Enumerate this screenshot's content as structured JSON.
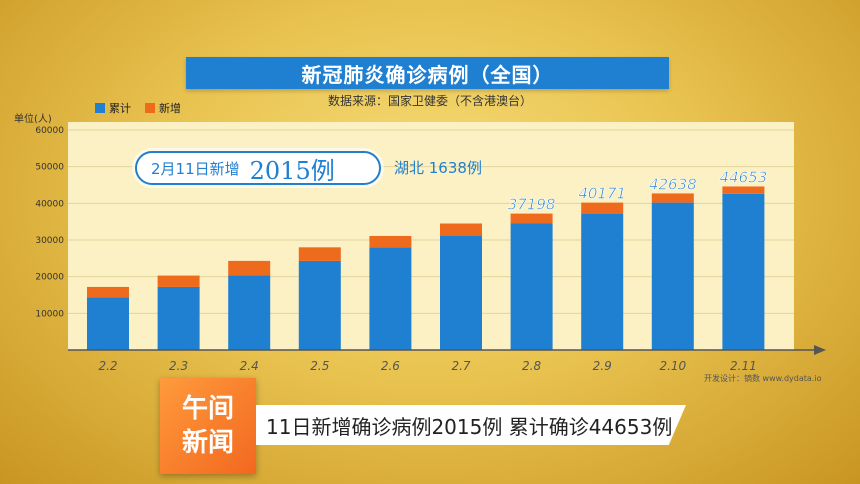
{
  "title": "新冠肺炎确诊病例（全国）",
  "subtitle": "数据来源：国家卫健委（不含港澳台）",
  "unit": "单位(人)",
  "callout": {
    "prefix": "2月11日新增",
    "value": "2015例"
  },
  "hubei": "湖北 1638例",
  "credit": "开发设计：镝数 www.dydata.io",
  "logo": {
    "line1": "午间",
    "line2": "新闻"
  },
  "ticker": "11日新增确诊病例2015例 累计确诊44653例",
  "colors": {
    "cumulative": "#1f7fd1",
    "new": "#ee6a1d"
  },
  "chart_data": {
    "type": "bar",
    "stacked": true,
    "categories": [
      "2.2",
      "2.3",
      "2.4",
      "2.5",
      "2.6",
      "2.7",
      "2.8",
      "2.9",
      "2.10",
      "2.11"
    ],
    "series": [
      {
        "name": "累计",
        "values": [
          14400,
          17200,
          20400,
          24300,
          28000,
          31200,
          34600,
          37200,
          40200,
          42600
        ]
      },
      {
        "name": "新增",
        "values": [
          2800,
          3100,
          3900,
          3700,
          3100,
          3300,
          2600,
          3000,
          2500,
          2000
        ]
      }
    ],
    "data_labels": [
      {
        "index": 6,
        "text": "37198"
      },
      {
        "index": 7,
        "text": "40171"
      },
      {
        "index": 8,
        "text": "42638"
      },
      {
        "index": 9,
        "text": "44653"
      }
    ],
    "y_ticks": [
      "0",
      "10000",
      "20000",
      "30000",
      "40000",
      "50000",
      "60000"
    ],
    "ylim": [
      0,
      60000
    ]
  }
}
